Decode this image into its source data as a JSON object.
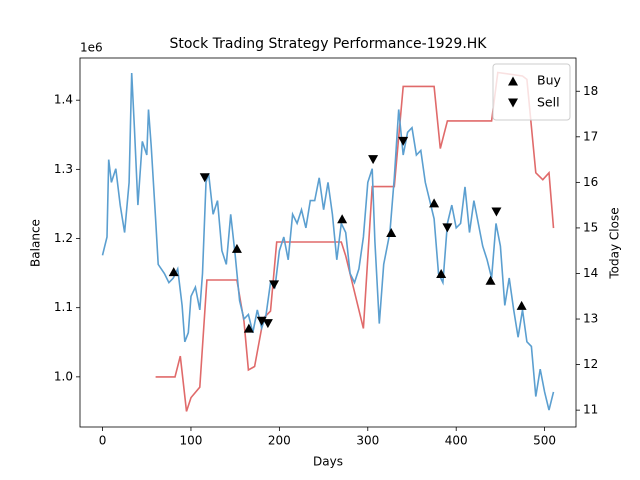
{
  "chart_data": {
    "type": "line",
    "title": "Stock Trading Strategy Performance-1929.HK",
    "x_label": "Days",
    "y_label": "Balance",
    "y2_label": "Today Close",
    "y_offset_label": "1e6",
    "y_color": "#d62728",
    "y2_color": "#1f77b4",
    "xlim": [
      -25.5,
      535.5
    ],
    "xticks": [
      0,
      100,
      200,
      300,
      400,
      500
    ],
    "ylim": [
      927500,
      1461000
    ],
    "yticks": [
      {
        "value": 1000000,
        "label": "1.0"
      },
      {
        "value": 1100000,
        "label": "1.1"
      },
      {
        "value": 1200000,
        "label": "1.2"
      },
      {
        "value": 1300000,
        "label": "1.3"
      },
      {
        "value": 1400000,
        "label": "1.4"
      }
    ],
    "y2lim": [
      10.63,
      18.73
    ],
    "y2ticks": [
      11,
      12,
      13,
      14,
      15,
      16,
      17,
      18
    ],
    "legend": "upper right",
    "series": [
      {
        "name": "Balance",
        "color": "#e06a6a",
        "axis": "y",
        "marker": null,
        "x": [
          60,
          82,
          88,
          95,
          100,
          110,
          118,
          152,
          160,
          165,
          172,
          182,
          190,
          197,
          270,
          275,
          295,
          305,
          330,
          340,
          375,
          382,
          390,
          440,
          447,
          475,
          480,
          490,
          498,
          505,
          510
        ],
        "values": [
          1000000,
          1000000,
          1030000,
          950000,
          970000,
          985000,
          1140000,
          1140000,
          1080000,
          1010000,
          1015000,
          1085000,
          1095000,
          1195000,
          1195000,
          1175000,
          1070000,
          1275000,
          1275000,
          1420000,
          1420000,
          1330000,
          1370000,
          1370000,
          1440000,
          1435000,
          1430000,
          1295000,
          1285000,
          1295000,
          1215000
        ]
      },
      {
        "name": "Today Close",
        "color": "#5b9fd0",
        "axis": "y2",
        "marker": null,
        "x": [
          0,
          5,
          7,
          10,
          15,
          20,
          25,
          30,
          33,
          36,
          40,
          45,
          50,
          52,
          55,
          60,
          63,
          70,
          75,
          80,
          85,
          90,
          93,
          97,
          100,
          105,
          110,
          113,
          117,
          120,
          125,
          130,
          135,
          140,
          145,
          150,
          155,
          160,
          165,
          170,
          175,
          180,
          185,
          190,
          195,
          200,
          205,
          210,
          215,
          220,
          225,
          230,
          235,
          240,
          245,
          250,
          255,
          260,
          265,
          270,
          275,
          280,
          285,
          290,
          295,
          300,
          305,
          308,
          313,
          318,
          325,
          330,
          335,
          340,
          345,
          350,
          355,
          360,
          365,
          370,
          375,
          380,
          385,
          390,
          395,
          400,
          405,
          410,
          415,
          420,
          425,
          430,
          435,
          440,
          445,
          450,
          455,
          460,
          465,
          470,
          475,
          480,
          485,
          490,
          495,
          500,
          505,
          510
        ],
        "values": [
          14.4,
          14.8,
          16.5,
          16.0,
          16.3,
          15.5,
          14.9,
          16.0,
          18.4,
          17.2,
          15.5,
          16.9,
          16.6,
          17.6,
          16.8,
          15.2,
          14.2,
          14.0,
          13.8,
          13.9,
          14.1,
          13.3,
          12.5,
          12.7,
          13.5,
          13.7,
          13.2,
          14.0,
          16.0,
          16.2,
          15.3,
          15.6,
          14.5,
          14.2,
          15.3,
          14.4,
          13.4,
          13.0,
          13.1,
          12.7,
          13.2,
          12.8,
          13.1,
          13.8,
          13.7,
          14.5,
          14.8,
          14.3,
          15.3,
          15.1,
          15.4,
          15.0,
          15.6,
          15.6,
          16.1,
          15.4,
          16.0,
          15.3,
          14.3,
          15.1,
          14.9,
          14.0,
          13.8,
          14.1,
          14.8,
          16.0,
          16.3,
          14.7,
          12.9,
          14.2,
          14.9,
          16.1,
          17.6,
          16.6,
          17.1,
          17.2,
          16.6,
          16.7,
          16.0,
          15.6,
          15.2,
          14.0,
          13.8,
          15.1,
          15.5,
          15.0,
          15.1,
          15.9,
          14.9,
          15.6,
          15.1,
          14.6,
          14.3,
          13.9,
          15.1,
          14.6,
          13.3,
          13.9,
          13.2,
          12.6,
          13.2,
          12.5,
          12.4,
          11.3,
          11.9,
          11.4,
          11.0,
          11.4
        ]
      },
      {
        "name": "Buy",
        "color": "#000000",
        "axis": "y2",
        "marker": "^",
        "x": [
          80.5,
          152,
          165.5,
          271,
          326.5,
          375,
          383,
          438.8,
          474
        ],
        "values": [
          14.04,
          14.55,
          12.8,
          15.2,
          14.9,
          15.55,
          14.0,
          13.85,
          13.3
        ]
      },
      {
        "name": "Sell",
        "color": "#000000",
        "axis": "y2",
        "marker": "v",
        "x": [
          115.6,
          180,
          187,
          194,
          306,
          340,
          390,
          445.5
        ],
        "values": [
          16.1,
          12.95,
          12.9,
          13.75,
          16.5,
          16.9,
          15.0,
          15.35
        ]
      }
    ]
  }
}
